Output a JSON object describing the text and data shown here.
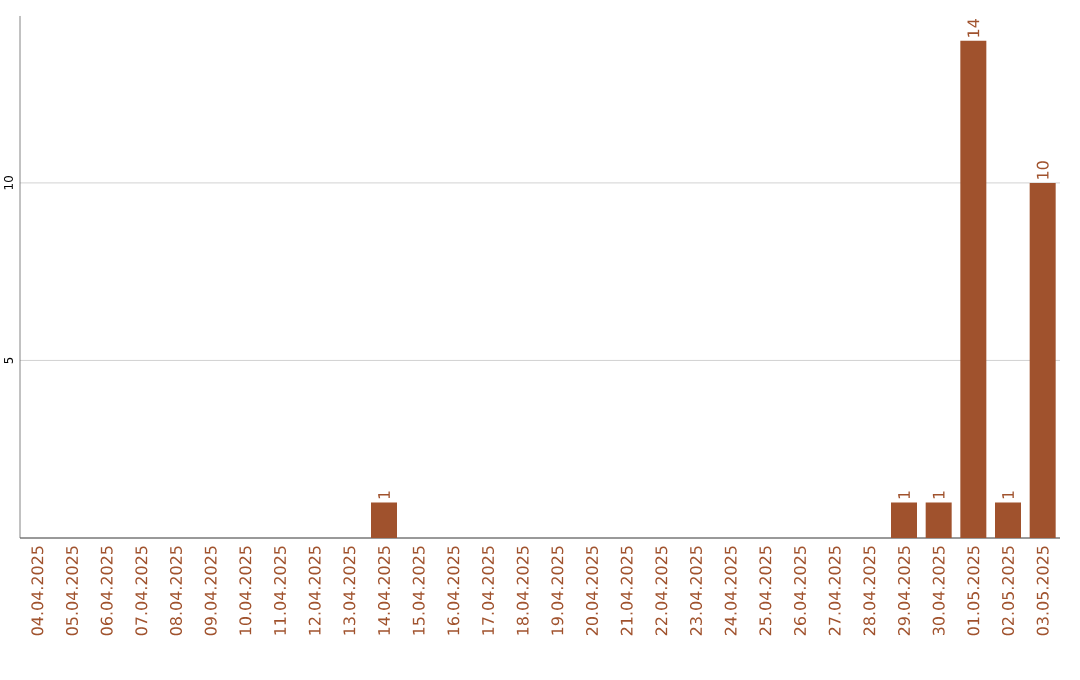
{
  "chart_data": {
    "type": "bar",
    "categories": [
      "04.04.2025",
      "05.04.2025",
      "06.04.2025",
      "07.04.2025",
      "08.04.2025",
      "09.04.2025",
      "10.04.2025",
      "11.04.2025",
      "12.04.2025",
      "13.04.2025",
      "14.04.2025",
      "15.04.2025",
      "16.04.2025",
      "17.04.2025",
      "18.04.2025",
      "19.04.2025",
      "20.04.2025",
      "21.04.2025",
      "22.04.2025",
      "23.04.2025",
      "24.04.2025",
      "25.04.2025",
      "26.04.2025",
      "27.04.2025",
      "28.04.2025",
      "29.04.2025",
      "30.04.2025",
      "01.05.2025",
      "02.05.2025",
      "03.05.2025"
    ],
    "values": [
      0,
      0,
      0,
      0,
      0,
      0,
      0,
      0,
      0,
      0,
      1,
      0,
      0,
      0,
      0,
      0,
      0,
      0,
      0,
      0,
      0,
      0,
      0,
      0,
      0,
      1,
      1,
      14,
      1,
      10
    ],
    "value_labels": [
      null,
      null,
      null,
      null,
      null,
      null,
      null,
      null,
      null,
      null,
      "1",
      null,
      null,
      null,
      null,
      null,
      null,
      null,
      null,
      null,
      null,
      null,
      null,
      null,
      null,
      "1",
      "1",
      "14",
      "1",
      "10"
    ],
    "color": "#a0522d",
    "ylim": [
      0,
      14.7
    ],
    "yticks": [
      5,
      10
    ],
    "grid": "y"
  }
}
